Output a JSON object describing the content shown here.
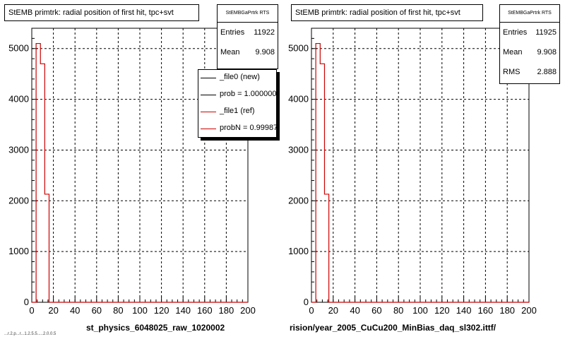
{
  "colors": {
    "reference": "#cc0000",
    "frame": "#000000",
    "grid": "#000000"
  },
  "pad1": {
    "title": "StEMB primtrk: radial position of first hit, tpc+svt",
    "stats": {
      "name": "StEMBGaPrtrk RTS",
      "rows": [
        {
          "label": "Entries",
          "value": "11922"
        },
        {
          "label": "Mean",
          "value": "9.908"
        }
      ]
    },
    "legend": [
      {
        "label": "_file0 (new)",
        "color": "#000000"
      },
      {
        "label": "prob = 1.000000",
        "color": "#000000"
      },
      {
        "label": "_file1 (ref)",
        "color": "#cc0000"
      },
      {
        "label": "probN = 0.99987",
        "color": "#cc0000"
      }
    ],
    "footer": "st_physics_6048025_raw_1020002",
    "footer_small": "...r.2.p...r...1.2.5.5.....2.0.0.5"
  },
  "pad2": {
    "title": "StEMB primtrk: radial position of first hit, tpc+svt",
    "stats": {
      "name": "StEMBGaPrtrk RTS",
      "rows": [
        {
          "label": "Entries",
          "value": "11925"
        },
        {
          "label": "Mean",
          "value": "9.908"
        },
        {
          "label": "RMS",
          "value": "2.888"
        }
      ]
    },
    "footer": "rision/year_2005_CuCu200_MinBias_daq_sl302.ittf/"
  },
  "chart_data": [
    {
      "type": "histogram",
      "title": "StEMB primtrk: radial position of first hit, tpc+svt",
      "xlim": [
        0,
        200
      ],
      "ylim": [
        0,
        5400
      ],
      "xticks": [
        0,
        20,
        40,
        60,
        80,
        100,
        120,
        140,
        160,
        180,
        200
      ],
      "yticks": [
        0,
        1000,
        2000,
        3000,
        4000,
        5000
      ],
      "grid": true,
      "legend_position": "top-right",
      "bin_edges": [
        0,
        4,
        8,
        12,
        16,
        200
      ],
      "series": [
        {
          "name": "_file1 (ref)",
          "values": [
            0,
            5100,
            4700,
            2130,
            0
          ],
          "color": "#cc0000"
        }
      ]
    },
    {
      "type": "histogram",
      "title": "StEMB primtrk: radial position of first hit, tpc+svt",
      "xlim": [
        0,
        200
      ],
      "ylim": [
        0,
        5400
      ],
      "xticks": [
        0,
        20,
        40,
        60,
        80,
        100,
        120,
        140,
        160,
        180,
        200
      ],
      "yticks": [
        0,
        1000,
        2000,
        3000,
        4000,
        5000
      ],
      "grid": true,
      "bin_edges": [
        0,
        4,
        8,
        12,
        16,
        200
      ],
      "series": [
        {
          "name": "_file1 (ref)",
          "values": [
            0,
            5100,
            4700,
            2130,
            0
          ],
          "color": "#cc0000"
        }
      ]
    }
  ]
}
